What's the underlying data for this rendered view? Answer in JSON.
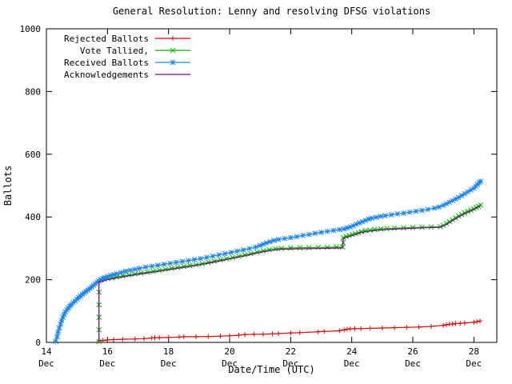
{
  "chart_data": {
    "type": "line",
    "title": "General Resolution: Lenny and resolving DFSG violations",
    "xlabel": "Date/Time (UTC)",
    "ylabel": "Ballots",
    "xlim": [
      14,
      28.75
    ],
    "ylim": [
      0,
      1000
    ],
    "grid": false,
    "legend_position": "top-left",
    "y_ticks": [
      0,
      200,
      400,
      600,
      800,
      1000
    ],
    "x_ticks": [
      {
        "value": 14,
        "label": "14",
        "sub": "Dec"
      },
      {
        "value": 16,
        "label": "16",
        "sub": "Dec"
      },
      {
        "value": 18,
        "label": "18",
        "sub": "Dec"
      },
      {
        "value": 20,
        "label": "20",
        "sub": "Dec"
      },
      {
        "value": 22,
        "label": "22",
        "sub": "Dec"
      },
      {
        "value": 24,
        "label": "24",
        "sub": "Dec"
      },
      {
        "value": 26,
        "label": "26",
        "sub": "Dec"
      },
      {
        "value": 28,
        "label": "28",
        "sub": "Dec"
      }
    ],
    "series": [
      {
        "name": "Rejected Ballots",
        "color": "#dd0000",
        "marker": "plus",
        "points": [
          [
            15.72,
            4
          ],
          [
            15.85,
            6
          ],
          [
            16.0,
            8
          ],
          [
            16.2,
            9
          ],
          [
            16.5,
            10
          ],
          [
            16.9,
            11
          ],
          [
            17.2,
            12
          ],
          [
            17.45,
            14
          ],
          [
            17.55,
            15
          ],
          [
            17.7,
            15
          ],
          [
            18.0,
            16
          ],
          [
            18.35,
            17
          ],
          [
            18.5,
            18
          ],
          [
            18.9,
            18
          ],
          [
            19.3,
            19
          ],
          [
            19.7,
            20
          ],
          [
            20.0,
            21
          ],
          [
            20.3,
            23
          ],
          [
            20.5,
            25
          ],
          [
            20.8,
            26
          ],
          [
            21.1,
            26
          ],
          [
            21.4,
            27
          ],
          [
            21.6,
            28
          ],
          [
            22.0,
            30
          ],
          [
            22.3,
            31
          ],
          [
            22.9,
            34
          ],
          [
            23.1,
            35
          ],
          [
            23.6,
            37
          ],
          [
            23.75,
            40
          ],
          [
            23.85,
            42
          ],
          [
            23.95,
            43
          ],
          [
            24.1,
            44
          ],
          [
            24.3,
            44
          ],
          [
            24.6,
            45
          ],
          [
            25.0,
            46
          ],
          [
            25.4,
            47
          ],
          [
            25.8,
            48
          ],
          [
            26.2,
            49
          ],
          [
            26.6,
            51
          ],
          [
            27.0,
            54
          ],
          [
            27.1,
            56
          ],
          [
            27.2,
            58
          ],
          [
            27.3,
            59
          ],
          [
            27.4,
            60
          ],
          [
            27.55,
            61
          ],
          [
            27.7,
            62
          ],
          [
            28.0,
            64
          ],
          [
            28.1,
            66
          ],
          [
            28.2,
            68
          ]
        ]
      },
      {
        "name": "Vote Tallied,",
        "color": "#00b400",
        "marker": "x",
        "points": [
          [
            15.72,
            3
          ],
          [
            15.72,
            40
          ],
          [
            15.72,
            80
          ],
          [
            15.72,
            120
          ],
          [
            15.72,
            160
          ],
          [
            15.72,
            196
          ],
          [
            15.8,
            199
          ],
          [
            15.9,
            201
          ],
          [
            16.0,
            204
          ],
          [
            16.15,
            206
          ],
          [
            16.3,
            209
          ],
          [
            16.5,
            212
          ],
          [
            16.7,
            215
          ],
          [
            16.9,
            218
          ],
          [
            17.1,
            221
          ],
          [
            17.3,
            224
          ],
          [
            17.5,
            227
          ],
          [
            17.7,
            230
          ],
          [
            17.9,
            233
          ],
          [
            18.1,
            236
          ],
          [
            18.3,
            239
          ],
          [
            18.5,
            242
          ],
          [
            18.7,
            245
          ],
          [
            18.9,
            248
          ],
          [
            19.1,
            251
          ],
          [
            19.3,
            255
          ],
          [
            19.5,
            259
          ],
          [
            19.7,
            263
          ],
          [
            19.9,
            267
          ],
          [
            20.1,
            271
          ],
          [
            20.3,
            275
          ],
          [
            20.5,
            279
          ],
          [
            20.7,
            283
          ],
          [
            20.9,
            288
          ],
          [
            21.1,
            292
          ],
          [
            21.3,
            296
          ],
          [
            21.5,
            299
          ],
          [
            21.7,
            300
          ],
          [
            22.0,
            301
          ],
          [
            22.3,
            302
          ],
          [
            22.6,
            302
          ],
          [
            22.9,
            303
          ],
          [
            23.2,
            303
          ],
          [
            23.5,
            304
          ],
          [
            23.7,
            304
          ],
          [
            23.72,
            318
          ],
          [
            23.72,
            334
          ],
          [
            23.82,
            338
          ],
          [
            23.92,
            341
          ],
          [
            24.02,
            344
          ],
          [
            24.12,
            347
          ],
          [
            24.22,
            350
          ],
          [
            24.32,
            353
          ],
          [
            24.45,
            356
          ],
          [
            24.6,
            358
          ],
          [
            24.75,
            360
          ],
          [
            24.95,
            362
          ],
          [
            25.15,
            363
          ],
          [
            25.4,
            364
          ],
          [
            25.7,
            365
          ],
          [
            26.0,
            366
          ],
          [
            26.3,
            367
          ],
          [
            26.6,
            368
          ],
          [
            26.9,
            369
          ],
          [
            27.0,
            373
          ],
          [
            27.1,
            379
          ],
          [
            27.2,
            385
          ],
          [
            27.3,
            391
          ],
          [
            27.4,
            397
          ],
          [
            27.5,
            403
          ],
          [
            27.6,
            408
          ],
          [
            27.7,
            413
          ],
          [
            27.8,
            418
          ],
          [
            27.9,
            422
          ],
          [
            28.0,
            426
          ],
          [
            28.08,
            430
          ],
          [
            28.15,
            434
          ],
          [
            28.22,
            438
          ]
        ]
      },
      {
        "name": "Received Ballots",
        "color": "#1c86ee",
        "marker": "star",
        "points": [
          [
            14.3,
            3
          ],
          [
            14.35,
            18
          ],
          [
            14.38,
            32
          ],
          [
            14.42,
            46
          ],
          [
            14.46,
            58
          ],
          [
            14.5,
            70
          ],
          [
            14.54,
            80
          ],
          [
            14.58,
            89
          ],
          [
            14.62,
            97
          ],
          [
            14.67,
            104
          ],
          [
            14.72,
            110
          ],
          [
            14.77,
            116
          ],
          [
            14.82,
            121
          ],
          [
            14.88,
            127
          ],
          [
            14.94,
            132
          ],
          [
            15.0,
            138
          ],
          [
            15.06,
            143
          ],
          [
            15.12,
            148
          ],
          [
            15.18,
            153
          ],
          [
            15.24,
            158
          ],
          [
            15.3,
            163
          ],
          [
            15.36,
            167
          ],
          [
            15.42,
            172
          ],
          [
            15.48,
            177
          ],
          [
            15.54,
            182
          ],
          [
            15.6,
            187
          ],
          [
            15.66,
            192
          ],
          [
            15.72,
            196
          ],
          [
            15.78,
            200
          ],
          [
            15.85,
            204
          ],
          [
            15.92,
            207
          ],
          [
            16.0,
            210
          ],
          [
            16.1,
            213
          ],
          [
            16.2,
            216
          ],
          [
            16.3,
            219
          ],
          [
            16.45,
            223
          ],
          [
            16.6,
            227
          ],
          [
            16.75,
            230
          ],
          [
            16.9,
            233
          ],
          [
            17.05,
            236
          ],
          [
            17.25,
            240
          ],
          [
            17.45,
            243
          ],
          [
            17.65,
            246
          ],
          [
            17.85,
            249
          ],
          [
            18.05,
            252
          ],
          [
            18.25,
            255
          ],
          [
            18.45,
            258
          ],
          [
            18.65,
            261
          ],
          [
            18.85,
            264
          ],
          [
            19.05,
            267
          ],
          [
            19.25,
            271
          ],
          [
            19.45,
            275
          ],
          [
            19.65,
            279
          ],
          [
            19.85,
            283
          ],
          [
            20.05,
            287
          ],
          [
            20.25,
            291
          ],
          [
            20.45,
            295
          ],
          [
            20.65,
            299
          ],
          [
            20.85,
            304
          ],
          [
            21.0,
            309
          ],
          [
            21.1,
            313
          ],
          [
            21.2,
            317
          ],
          [
            21.32,
            321
          ],
          [
            21.45,
            325
          ],
          [
            21.6,
            328
          ],
          [
            21.8,
            331
          ],
          [
            22.0,
            334
          ],
          [
            22.2,
            337
          ],
          [
            22.4,
            341
          ],
          [
            22.6,
            344
          ],
          [
            22.8,
            348
          ],
          [
            23.0,
            351
          ],
          [
            23.2,
            354
          ],
          [
            23.4,
            357
          ],
          [
            23.6,
            360
          ],
          [
            23.75,
            362
          ],
          [
            23.85,
            365
          ],
          [
            23.95,
            368
          ],
          [
            24.05,
            372
          ],
          [
            24.15,
            377
          ],
          [
            24.25,
            381
          ],
          [
            24.35,
            385
          ],
          [
            24.45,
            389
          ],
          [
            24.55,
            393
          ],
          [
            24.65,
            396
          ],
          [
            24.8,
            399
          ],
          [
            24.95,
            402
          ],
          [
            25.1,
            404
          ],
          [
            25.3,
            407
          ],
          [
            25.5,
            410
          ],
          [
            25.7,
            412
          ],
          [
            25.9,
            415
          ],
          [
            26.1,
            418
          ],
          [
            26.3,
            421
          ],
          [
            26.5,
            424
          ],
          [
            26.7,
            428
          ],
          [
            26.85,
            432
          ],
          [
            27.0,
            437
          ],
          [
            27.1,
            442
          ],
          [
            27.2,
            447
          ],
          [
            27.3,
            452
          ],
          [
            27.4,
            457
          ],
          [
            27.5,
            462
          ],
          [
            27.6,
            468
          ],
          [
            27.7,
            474
          ],
          [
            27.8,
            480
          ],
          [
            27.9,
            486
          ],
          [
            28.0,
            492
          ],
          [
            28.06,
            498
          ],
          [
            28.12,
            504
          ],
          [
            28.18,
            510
          ],
          [
            28.22,
            514
          ]
        ]
      },
      {
        "name": "Acknowledgements",
        "color": "#8b008b",
        "marker": "none",
        "points": [
          [
            15.72,
            3
          ],
          [
            15.72,
            192
          ],
          [
            16.0,
            200
          ],
          [
            16.5,
            209
          ],
          [
            17.0,
            217
          ],
          [
            17.5,
            224
          ],
          [
            18.0,
            232
          ],
          [
            18.5,
            239
          ],
          [
            19.0,
            247
          ],
          [
            19.5,
            256
          ],
          [
            20.0,
            266
          ],
          [
            20.5,
            276
          ],
          [
            21.0,
            287
          ],
          [
            21.4,
            294
          ],
          [
            21.7,
            297
          ],
          [
            22.1,
            298
          ],
          [
            22.6,
            299
          ],
          [
            23.1,
            300
          ],
          [
            23.7,
            301
          ],
          [
            23.72,
            331
          ],
          [
            24.0,
            340
          ],
          [
            24.3,
            350
          ],
          [
            24.6,
            355
          ],
          [
            25.0,
            359
          ],
          [
            25.5,
            362
          ],
          [
            26.0,
            364
          ],
          [
            26.5,
            366
          ],
          [
            26.9,
            367
          ],
          [
            27.1,
            376
          ],
          [
            27.3,
            388
          ],
          [
            27.5,
            400
          ],
          [
            27.7,
            410
          ],
          [
            27.9,
            419
          ],
          [
            28.1,
            429
          ],
          [
            28.22,
            435
          ]
        ]
      }
    ]
  }
}
